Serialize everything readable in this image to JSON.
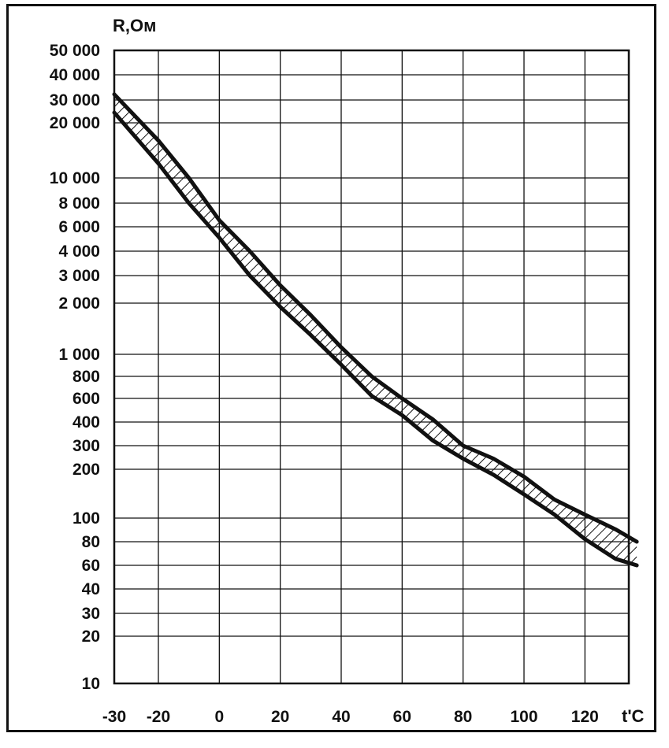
{
  "chart_data": {
    "type": "line",
    "title": "",
    "xlabel": "t'C",
    "ylabel": "R,Ом",
    "y_scale": "log-like (custom tick spacing)",
    "grid": true,
    "legend": "none",
    "xlim": [
      -30,
      137
    ],
    "ylim": [
      10,
      50000
    ],
    "x_ticks": [
      {
        "value": -30,
        "label": "-30"
      },
      {
        "value": -20,
        "label": "-20"
      },
      {
        "value": 0,
        "label": "0"
      },
      {
        "value": 20,
        "label": "20"
      },
      {
        "value": 40,
        "label": "40"
      },
      {
        "value": 60,
        "label": "60"
      },
      {
        "value": 80,
        "label": "80"
      },
      {
        "value": 100,
        "label": "100"
      },
      {
        "value": 120,
        "label": "120"
      }
    ],
    "y_ticks": [
      {
        "value": 50000,
        "label": "50 000"
      },
      {
        "value": 40000,
        "label": "40 000"
      },
      {
        "value": 30000,
        "label": "30 000"
      },
      {
        "value": 20000,
        "label": "20 000"
      },
      {
        "value": 10000,
        "label": "10 000"
      },
      {
        "value": 8000,
        "label": "8 000"
      },
      {
        "value": 6000,
        "label": "6 000"
      },
      {
        "value": 4000,
        "label": "4 000"
      },
      {
        "value": 3000,
        "label": "3 000"
      },
      {
        "value": 2000,
        "label": "2 000"
      },
      {
        "value": 1000,
        "label": "1 000"
      },
      {
        "value": 800,
        "label": "800"
      },
      {
        "value": 600,
        "label": "600"
      },
      {
        "value": 400,
        "label": "400"
      },
      {
        "value": 300,
        "label": "300"
      },
      {
        "value": 200,
        "label": "200"
      },
      {
        "value": 100,
        "label": "100"
      },
      {
        "value": 80,
        "label": "80"
      },
      {
        "value": 60,
        "label": "60"
      },
      {
        "value": 40,
        "label": "40"
      },
      {
        "value": 30,
        "label": "30"
      },
      {
        "value": 20,
        "label": "20"
      },
      {
        "value": 10,
        "label": "10"
      }
    ],
    "series": [
      {
        "x": [
          -30,
          -20,
          -10,
          0,
          10,
          20,
          30,
          40,
          50,
          60,
          70,
          80,
          90,
          100,
          110,
          120,
          130,
          137
        ],
        "y": [
          32000,
          16000,
          10000,
          6500,
          4000,
          2600,
          1700,
          1100,
          800,
          600,
          420,
          300,
          240,
          180,
          130,
          105,
          90,
          80
        ]
      },
      {
        "x": [
          -30,
          -20,
          -10,
          0,
          10,
          20,
          30,
          40,
          50,
          60,
          70,
          80,
          90,
          100,
          110,
          120,
          130,
          137
        ],
        "y": [
          24000,
          12000,
          8000,
          5000,
          3000,
          1900,
          1300,
          900,
          620,
          450,
          320,
          240,
          185,
          140,
          105,
          82,
          65,
          60
        ]
      }
    ]
  }
}
